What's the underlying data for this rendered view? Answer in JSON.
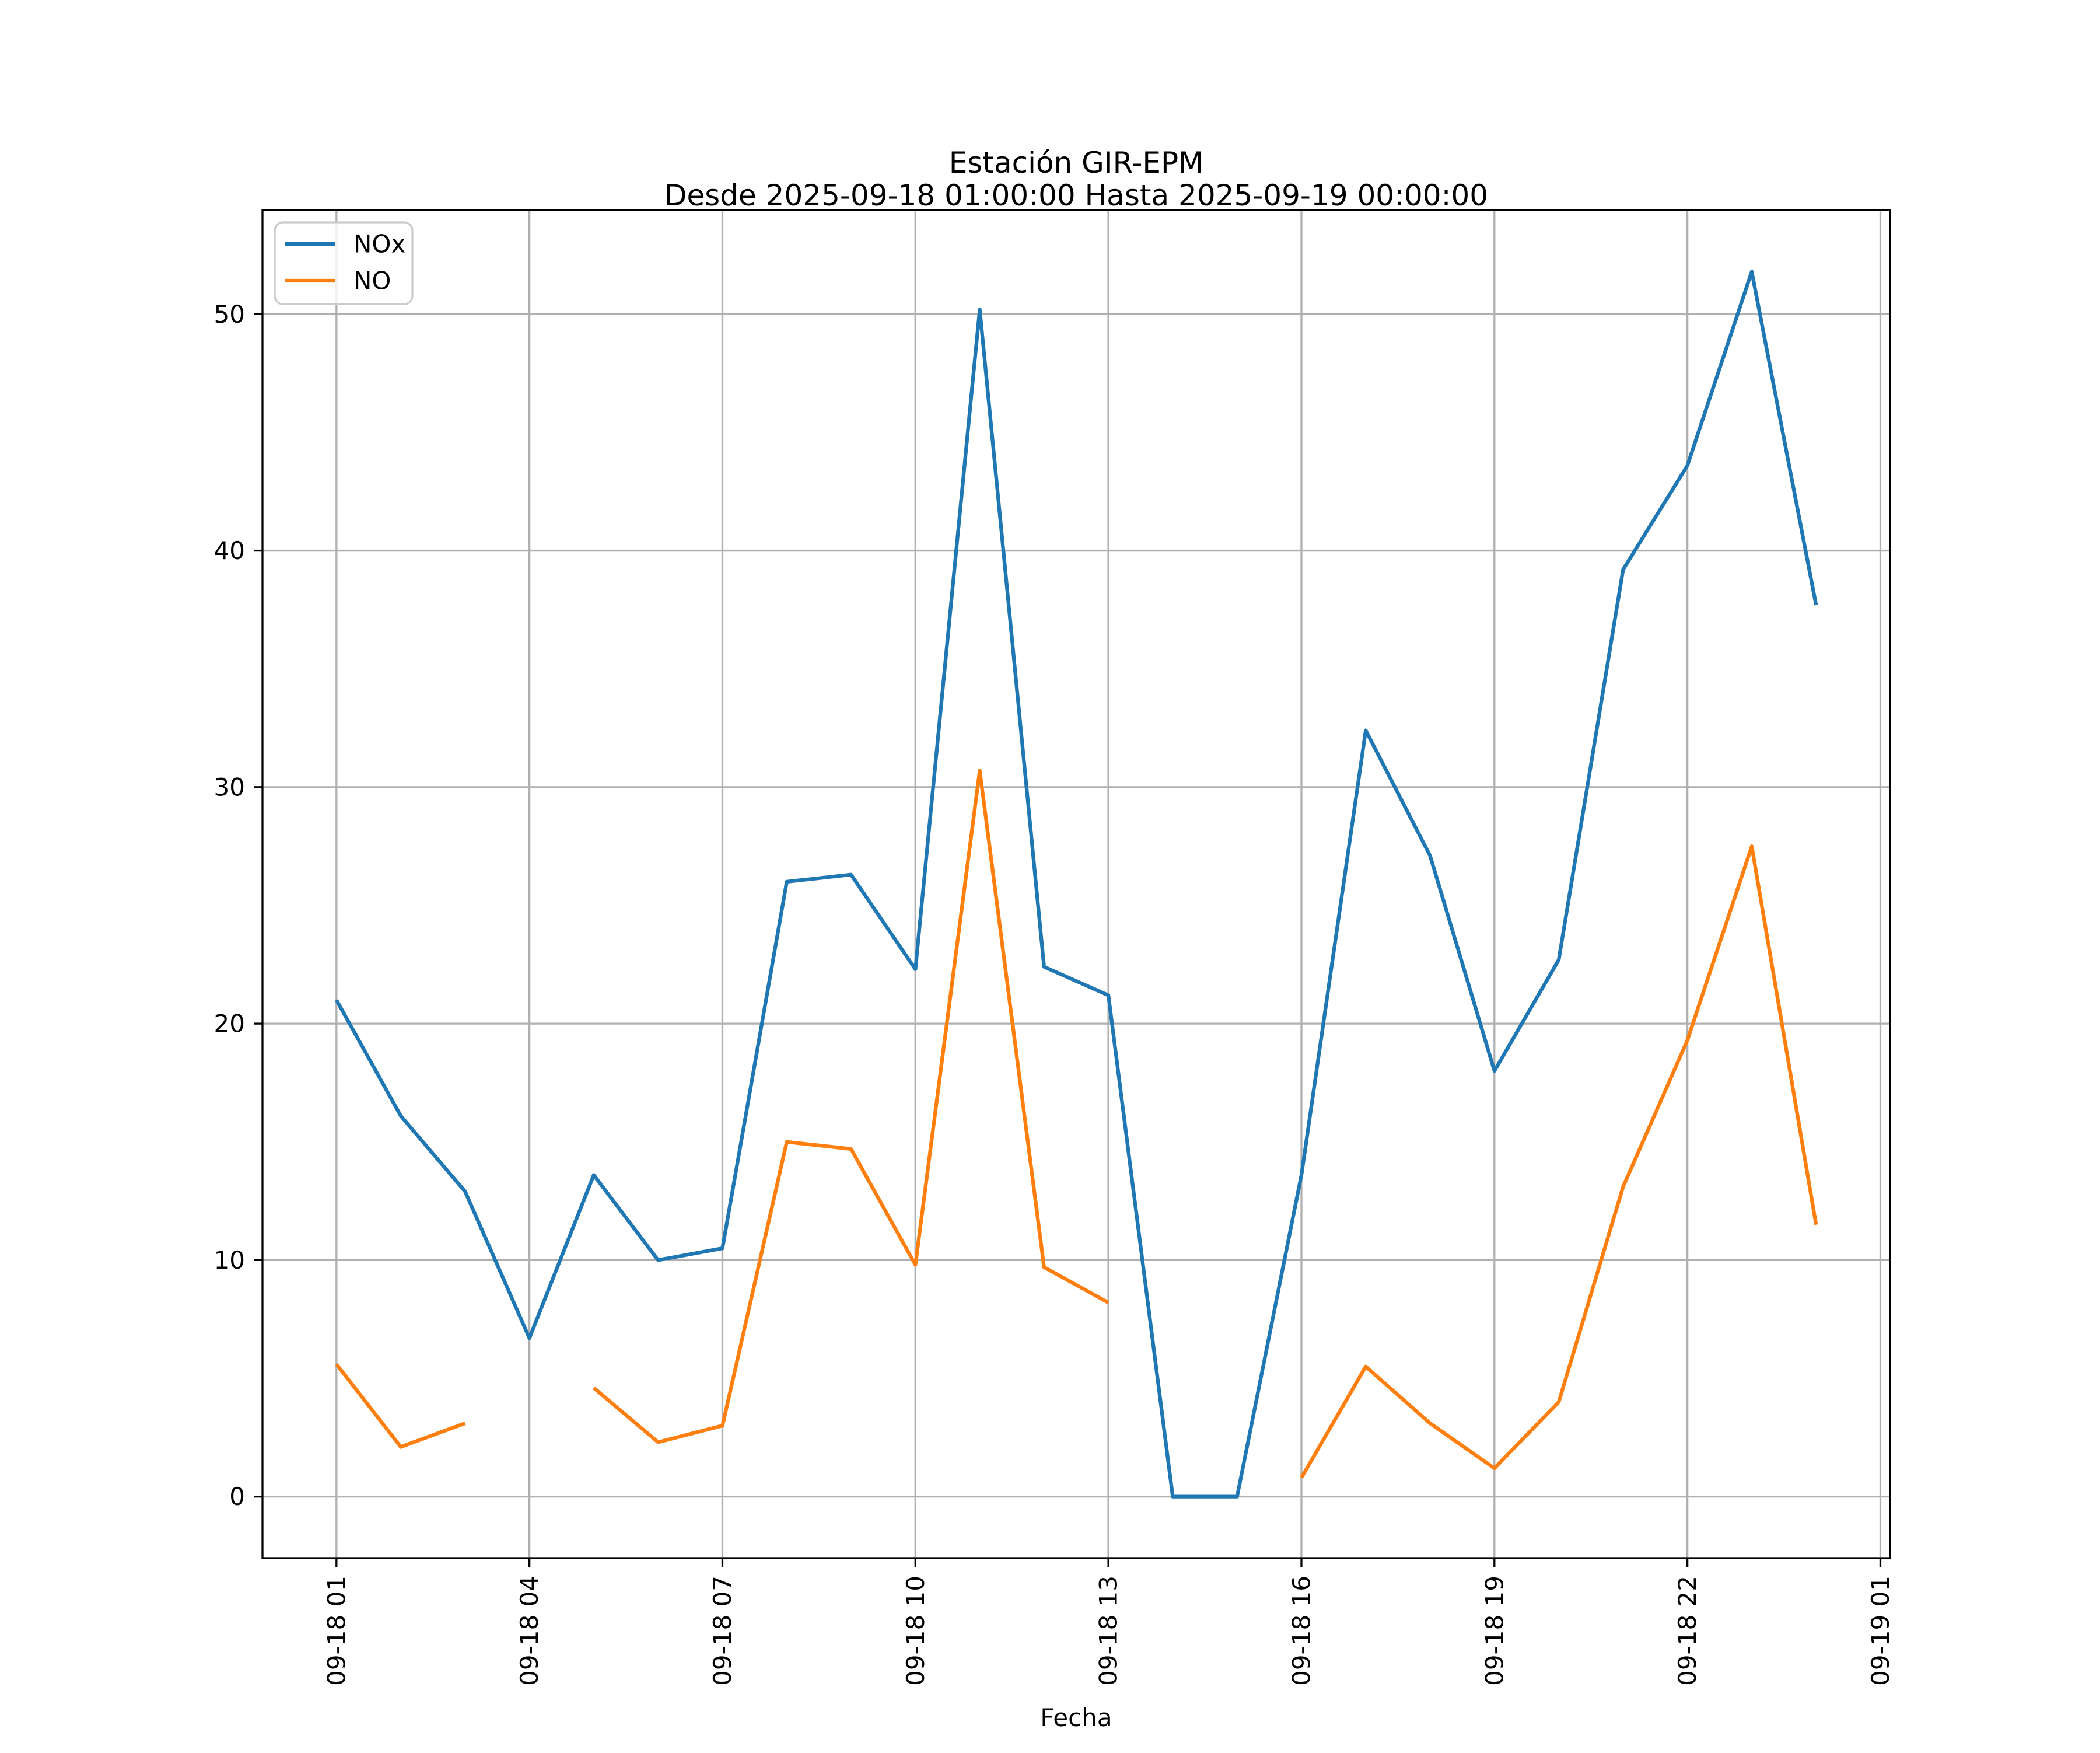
{
  "chart_data": {
    "type": "line",
    "title": "Estación GIR-EPM",
    "subtitle": "Desde 2025-09-18 01:00:00 Hasta 2025-09-19 00:00:00",
    "xlabel": "Fecha",
    "ylabel": "",
    "x_description": "hour index on 2025-09-18; 1 = 01:00, 24 = 00:00 on 2025-09-19; null = missing data",
    "x": [
      1,
      2,
      3,
      4,
      5,
      6,
      7,
      8,
      9,
      10,
      11,
      12,
      13,
      14,
      15,
      16,
      17,
      18,
      19,
      20,
      21,
      22,
      23,
      24
    ],
    "series": [
      {
        "name": "NOx",
        "color": "#1f77b4",
        "values": [
          21.0,
          16.1,
          12.9,
          6.7,
          13.6,
          10.0,
          10.5,
          26.0,
          26.3,
          22.3,
          50.2,
          22.4,
          21.2,
          0.0,
          0.0,
          13.6,
          32.4,
          27.1,
          18.0,
          22.7,
          39.2,
          43.6,
          51.8,
          37.7
        ]
      },
      {
        "name": "NO",
        "color": "#ff7f0e",
        "values": [
          5.6,
          2.1,
          3.1,
          null,
          4.6,
          2.3,
          3.0,
          15.0,
          14.7,
          9.8,
          30.7,
          9.7,
          8.2,
          null,
          null,
          0.8,
          5.5,
          3.1,
          1.2,
          4.0,
          13.1,
          19.3,
          27.5,
          11.5
        ]
      }
    ],
    "x_ticks": [
      1,
      4,
      7,
      10,
      13,
      16,
      19,
      22,
      25
    ],
    "x_tick_labels": [
      "09-18 01",
      "09-18 04",
      "09-18 07",
      "09-18 10",
      "09-18 13",
      "09-18 16",
      "09-18 19",
      "09-18 22",
      "09-19 01"
    ],
    "y_ticks": [
      0,
      10,
      20,
      30,
      40,
      50
    ],
    "y_tick_labels": [
      "0",
      "10",
      "20",
      "30",
      "40",
      "50"
    ],
    "xlim": [
      -0.15,
      25.15
    ],
    "ylim": [
      -2.6,
      54.4
    ],
    "grid": true,
    "grid_color": "#b0b0b0",
    "spine_color": "#000000",
    "background": "#ffffff",
    "legend_position": "upper-left",
    "legend_entries": [
      "NOx",
      "NO"
    ]
  }
}
